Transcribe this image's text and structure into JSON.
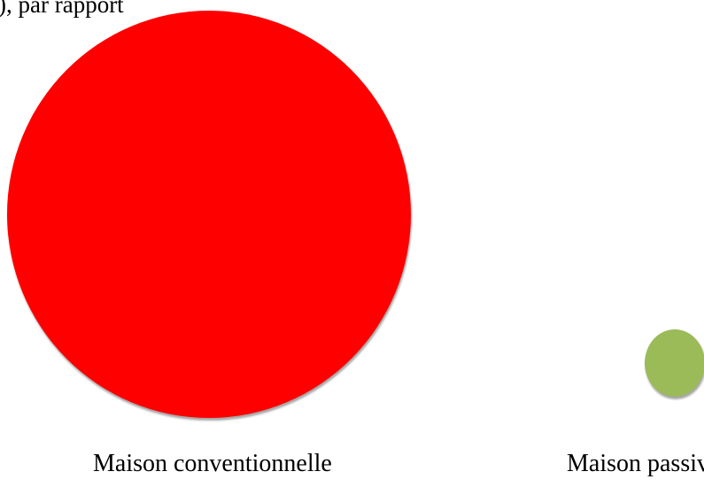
{
  "top_text": "), par rapport",
  "circles": {
    "conventional": {
      "label": "Maison conventionnelle",
      "color": "#ff0000"
    },
    "passive": {
      "label": "Maison passive",
      "color": "#9bbb59"
    }
  }
}
